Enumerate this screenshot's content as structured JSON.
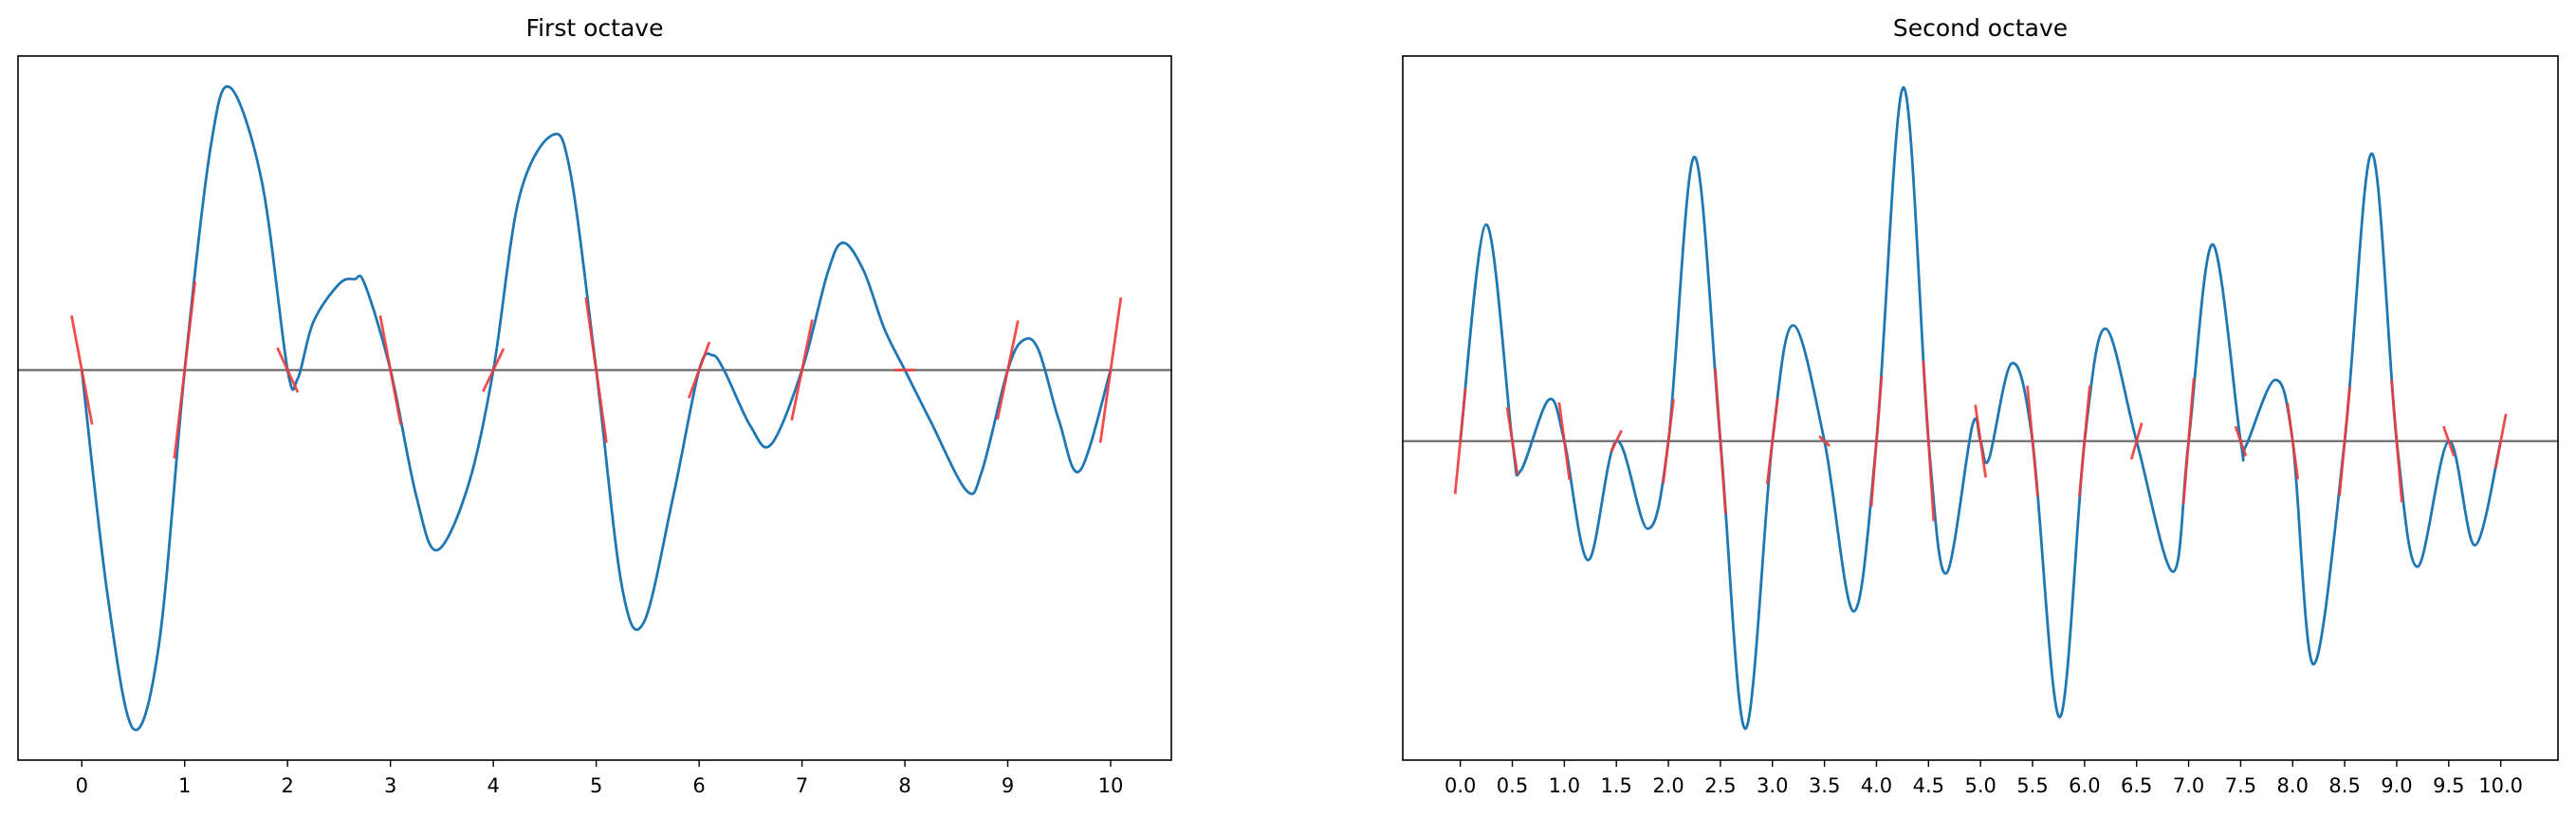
{
  "chart_data": [
    {
      "type": "line",
      "title": "First octave",
      "color": "#1f77b4",
      "x": [
        0,
        0.25,
        0.5,
        0.75,
        1,
        1.25,
        1.44,
        1.75,
        2,
        2.1,
        2.25,
        2.5,
        2.65,
        2.75,
        3,
        3.25,
        3.45,
        3.75,
        4,
        4.25,
        4.57,
        4.75,
        5,
        5.25,
        5.46,
        5.75,
        6,
        6.13,
        6.25,
        6.5,
        6.7,
        7,
        7.25,
        7.4,
        7.6,
        7.8,
        8,
        8.25,
        8.6,
        8.75,
        9,
        9.15,
        9.3,
        9.5,
        9.7,
        10
      ],
      "values": [
        0,
        -1.36,
        -2.17,
        -1.66,
        0,
        1.34,
        1.71,
        1.14,
        0,
        -0.05,
        0.29,
        0.52,
        0.55,
        0.52,
        0,
        -0.76,
        -1.09,
        -0.71,
        0,
        1.04,
        1.42,
        1.19,
        0,
        -1.31,
        -1.53,
        -0.76,
        0,
        0.09,
        -0.01,
        -0.34,
        -0.45,
        0,
        0.59,
        0.77,
        0.6,
        0.25,
        0,
        -0.31,
        -0.73,
        -0.61,
        0,
        0.18,
        0.12,
        -0.31,
        -0.61,
        0
      ],
      "gradients": {
        "color": "#ee3b3b",
        "x": [
          0,
          1,
          2,
          3,
          4,
          5,
          6,
          7,
          8,
          9,
          10
        ],
        "slopes": [
          -3.3,
          5.35,
          -1.35,
          -3.3,
          1.3,
          -4.4,
          1.7,
          3.05,
          0,
          3.0,
          4.4
        ]
      },
      "hline": 0,
      "hline_color": "#777777",
      "xlim": [
        -0.62,
        10.59
      ],
      "ylim": [
        -2.36,
        1.9
      ],
      "xticks": [
        0,
        1,
        2,
        3,
        4,
        5,
        6,
        7,
        8,
        9,
        10
      ]
    },
    {
      "type": "line",
      "title": "Second octave",
      "color": "#1f77b4",
      "x": [
        0,
        0.25,
        0.5,
        0.58,
        0.85,
        1,
        1.23,
        1.5,
        1.8,
        2,
        2.25,
        2.5,
        2.74,
        3,
        3.2,
        3.5,
        3.78,
        4,
        4.26,
        4.5,
        4.67,
        4.92,
        5,
        5.08,
        5.3,
        5.5,
        5.76,
        6,
        6.2,
        6.5,
        6.85,
        7,
        7.23,
        7.5,
        7.55,
        7.83,
        8,
        8.2,
        8.5,
        8.76,
        9,
        9.2,
        9.5,
        9.75,
        10
      ],
      "values": [
        0,
        1.31,
        0,
        -0.18,
        0.25,
        0,
        -0.72,
        0,
        -0.53,
        0,
        1.72,
        0,
        -1.74,
        0,
        0.7,
        0,
        -1.03,
        0,
        2.14,
        0,
        -0.8,
        0.09,
        0,
        -0.11,
        0.47,
        0,
        -1.67,
        0,
        0.68,
        0,
        -0.79,
        0,
        1.19,
        0,
        -0.03,
        0.37,
        0,
        -1.35,
        0,
        1.74,
        0,
        -0.76,
        0,
        -0.63,
        0
      ],
      "gradients": {
        "color": "#ee3b3b",
        "x": [
          0,
          0.5,
          1,
          1.5,
          2,
          2.5,
          3,
          3.5,
          4,
          4.5,
          5,
          5.5,
          6,
          6.5,
          7,
          7.5,
          8,
          8.5,
          9,
          9.5,
          10
        ],
        "slopes": [
          6.4,
          -4.1,
          -4.7,
          1.3,
          5.1,
          -8.8,
          5.2,
          -0.6,
          7.9,
          -9.7,
          -4.4,
          -6.7,
          6.7,
          2.2,
          7.6,
          -1.8,
          -4.6,
          6.6,
          -7.4,
          -1.8,
          3.3
        ]
      },
      "hline": 0,
      "hline_color": "#777777",
      "xlim": [
        -0.553,
        10.55
      ],
      "ylim": [
        -1.93,
        2.33
      ],
      "xticks": [
        {
          "value": 0,
          "label": "0.0"
        },
        {
          "value": 0.5,
          "label": "0.5"
        },
        {
          "value": 1,
          "label": "1.0"
        },
        {
          "value": 1.5,
          "label": "1.5"
        },
        {
          "value": 2,
          "label": "2.0"
        },
        {
          "value": 2.5,
          "label": "2.5"
        },
        {
          "value": 3,
          "label": "3.0"
        },
        {
          "value": 3.5,
          "label": "3.5"
        },
        {
          "value": 4,
          "label": "4.0"
        },
        {
          "value": 4.5,
          "label": "4.5"
        },
        {
          "value": 5,
          "label": "5.0"
        },
        {
          "value": 5.5,
          "label": "5.5"
        },
        {
          "value": 6,
          "label": "6.0"
        },
        {
          "value": 6.5,
          "label": "6.5"
        },
        {
          "value": 7,
          "label": "7.0"
        },
        {
          "value": 7.5,
          "label": "7.5"
        },
        {
          "value": 8,
          "label": "8.0"
        },
        {
          "value": 8.5,
          "label": "8.5"
        },
        {
          "value": 9,
          "label": "9.0"
        },
        {
          "value": 9.5,
          "label": "9.5"
        },
        {
          "value": 10,
          "label": "10.0"
        }
      ]
    }
  ]
}
